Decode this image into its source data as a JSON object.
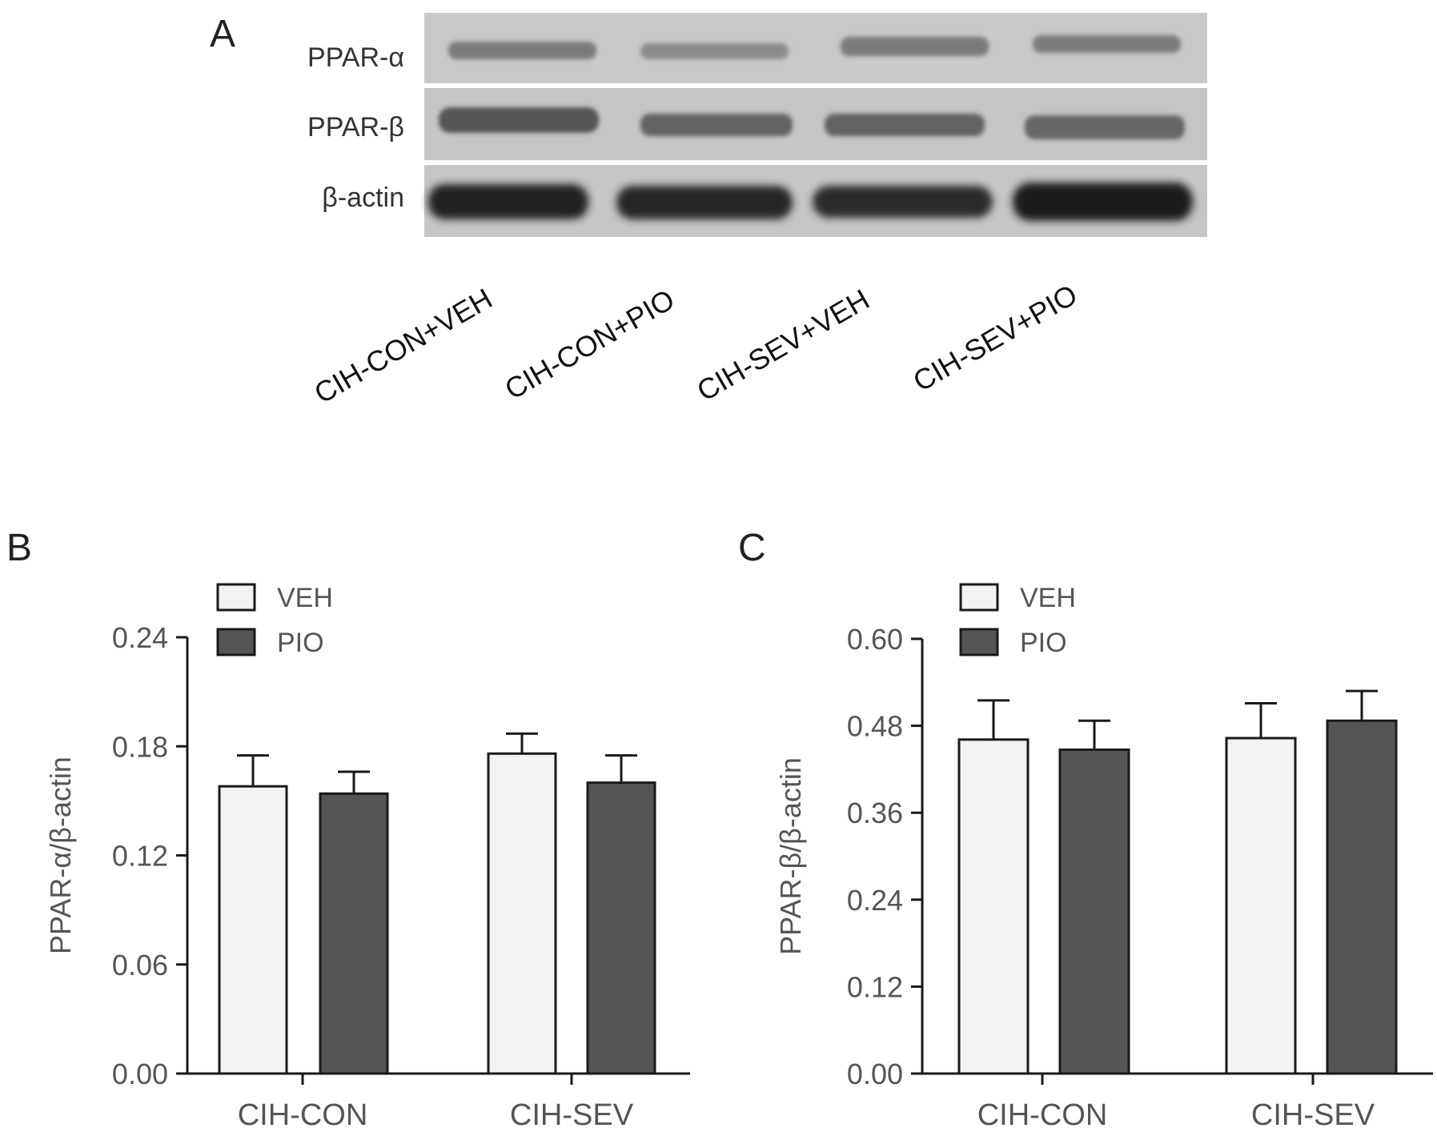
{
  "panel_a": {
    "label": "A",
    "rows": [
      "PPAR-α",
      "PPAR-β",
      "β-actin"
    ],
    "lanes": [
      "CIH-CON+VEH",
      "CIH-CON+PIO",
      "CIH-SEV+VEH",
      "CIH-SEV+PIO"
    ]
  },
  "legend": {
    "veh": "VEH",
    "pio": "PIO"
  },
  "colors": {
    "veh": "#f2f2f2",
    "pio": "#555555",
    "axis": "#1a1a1a"
  },
  "chart_data": [
    {
      "panel_label": "B",
      "type": "bar",
      "categories": [
        "CIH-CON",
        "CIH-SEV"
      ],
      "series": [
        {
          "name": "VEH",
          "values": [
            0.158,
            0.176
          ],
          "errors": [
            0.017,
            0.011
          ]
        },
        {
          "name": "PIO",
          "values": [
            0.154,
            0.16
          ],
          "errors": [
            0.012,
            0.015
          ]
        }
      ],
      "ylabel": "PPAR-α/β-actin",
      "ylim": [
        0,
        0.24
      ],
      "yticks": [
        "0.00",
        "0.06",
        "0.12",
        "0.18",
        "0.24"
      ],
      "legend_position": "top-left",
      "grid": false
    },
    {
      "panel_label": "C",
      "type": "bar",
      "categories": [
        "CIH-CON",
        "CIH-SEV"
      ],
      "series": [
        {
          "name": "VEH",
          "values": [
            0.461,
            0.463
          ],
          "errors": [
            0.054,
            0.048
          ]
        },
        {
          "name": "PIO",
          "values": [
            0.447,
            0.487
          ],
          "errors": [
            0.04,
            0.041
          ]
        }
      ],
      "ylabel": "PPAR-β/β-actin",
      "ylim": [
        0,
        0.6
      ],
      "yticks": [
        "0.00",
        "0.12",
        "0.24",
        "0.36",
        "0.48",
        "0.60"
      ],
      "legend_position": "top-left",
      "grid": false
    }
  ]
}
